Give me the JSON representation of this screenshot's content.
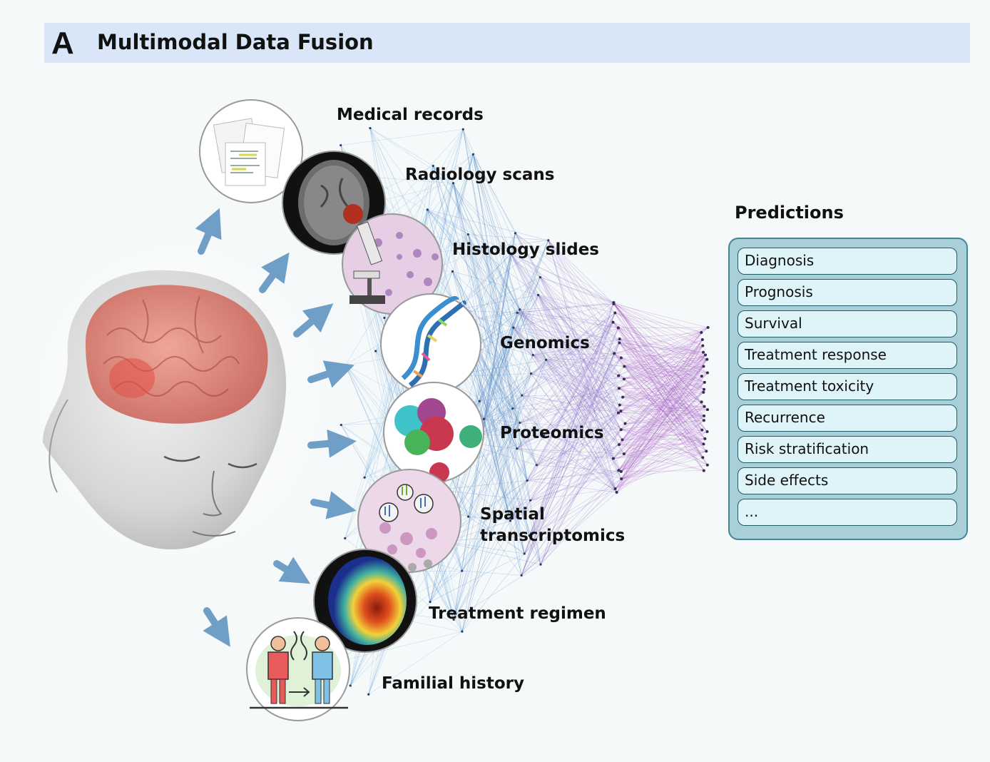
{
  "panel": {
    "letter": "A",
    "title": "Multimodal Data Fusion"
  },
  "modalities": [
    {
      "label": "Medical records"
    },
    {
      "label": "Radiology scans"
    },
    {
      "label": "Histology slides"
    },
    {
      "label": "Genomics"
    },
    {
      "label": "Proteomics"
    },
    {
      "label": "Spatial transcriptomics"
    },
    {
      "label": "Treatment regimen"
    },
    {
      "label": "Familial history"
    }
  ],
  "predictions": {
    "title": "Predictions",
    "items": [
      "Diagnosis",
      "Prognosis",
      "Survival",
      "Treatment response",
      "Treatment toxicity",
      "Recurrence",
      "Risk stratification",
      "Side effects",
      "..."
    ]
  },
  "colors": {
    "header": "#d9e6f8",
    "arrow": "#6f9fc6",
    "network_start": "#7fb8e6",
    "network_mid": "#4e86c4",
    "network_end": "#a05cc0",
    "prediction_box": "#a9d0d9",
    "prediction_item": "#dff4f9"
  },
  "icons": [
    "head-illustration-icon",
    "documents-icon",
    "mri-scan-icon",
    "microscope-icon",
    "dna-helix-icon",
    "protein-structure-icon",
    "tissue-spatial-icon",
    "brain-heatmap-icon",
    "family-icon"
  ]
}
